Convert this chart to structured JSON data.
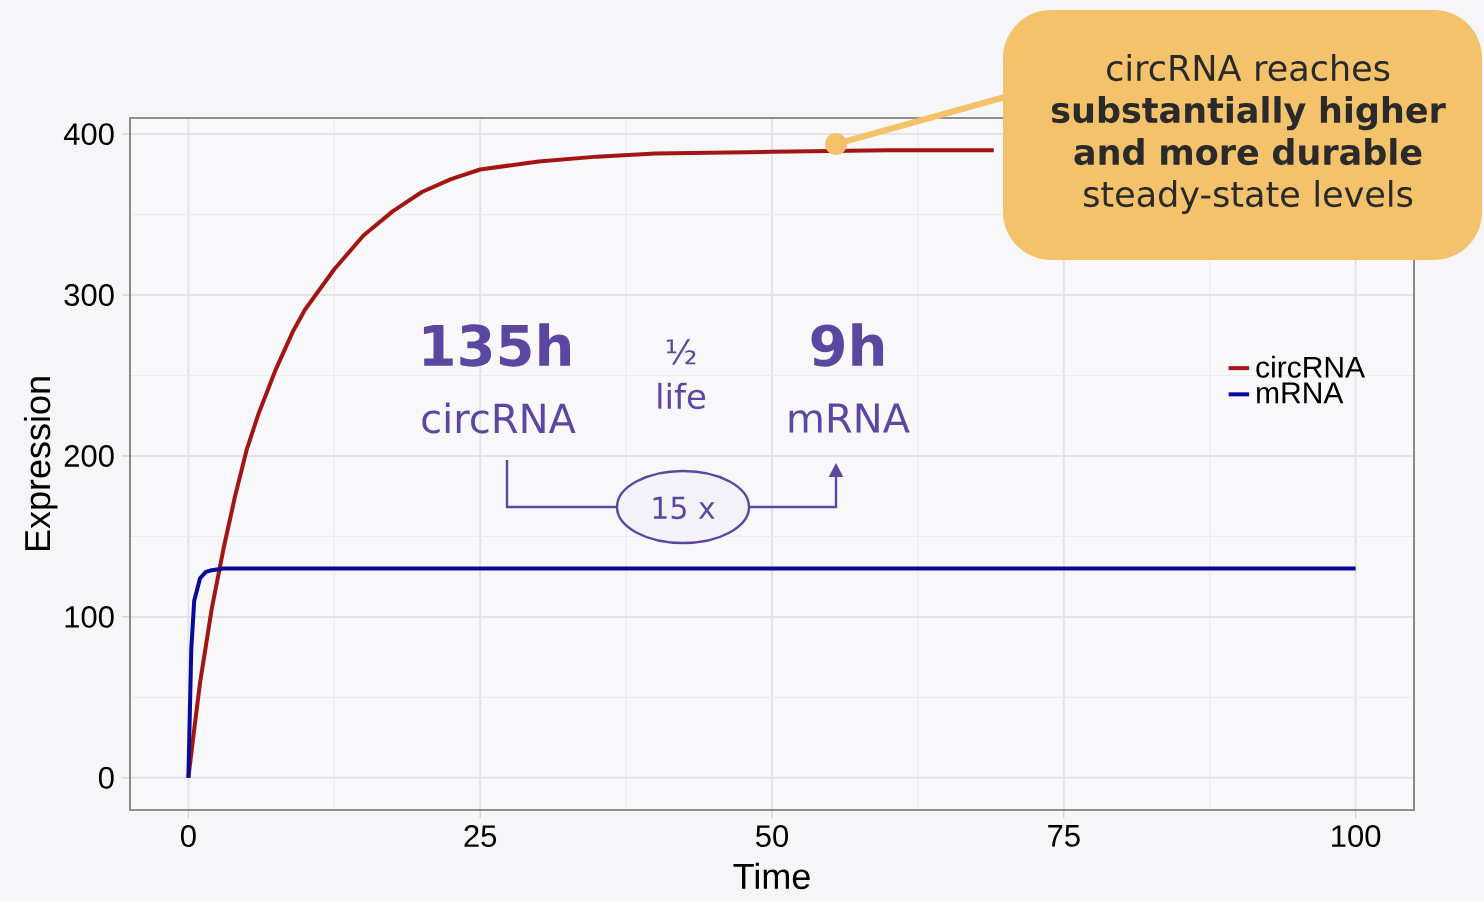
{
  "chart_data": {
    "type": "line",
    "xlabel": "Time",
    "ylabel": "Expression",
    "xlim": [
      -5,
      105
    ],
    "ylim": [
      -20,
      410
    ],
    "xticks": [
      0,
      25,
      50,
      75,
      100
    ],
    "yticks": [
      0,
      100,
      200,
      300,
      400
    ],
    "grid": true,
    "legend": "right",
    "series": [
      {
        "name": "circRNA",
        "color": "#a31515",
        "x": [
          0,
          0.5,
          1,
          2,
          3,
          4,
          5,
          6,
          7.5,
          9,
          10,
          12.5,
          15,
          17.5,
          20,
          22.5,
          25,
          30,
          35,
          40,
          50,
          60,
          69
        ],
        "values": [
          0,
          30,
          59,
          105,
          142,
          175,
          204,
          226,
          254,
          278,
          291,
          316,
          337,
          352,
          364,
          372,
          378,
          383,
          386,
          388,
          389,
          390,
          390
        ]
      },
      {
        "name": "mRNA",
        "color": "#0a0a9a",
        "x": [
          0,
          0.25,
          0.5,
          1,
          1.5,
          2,
          3,
          50,
          100
        ],
        "values": [
          0,
          80,
          110,
          124,
          128,
          129,
          130,
          130,
          130
        ]
      }
    ],
    "annotations": [
      "circRNA reaches **substantially higher and more durable** steady-state levels",
      "135h",
      "circRNA",
      "½",
      "life",
      "9h",
      "mRNA",
      "15 x"
    ]
  }
}
